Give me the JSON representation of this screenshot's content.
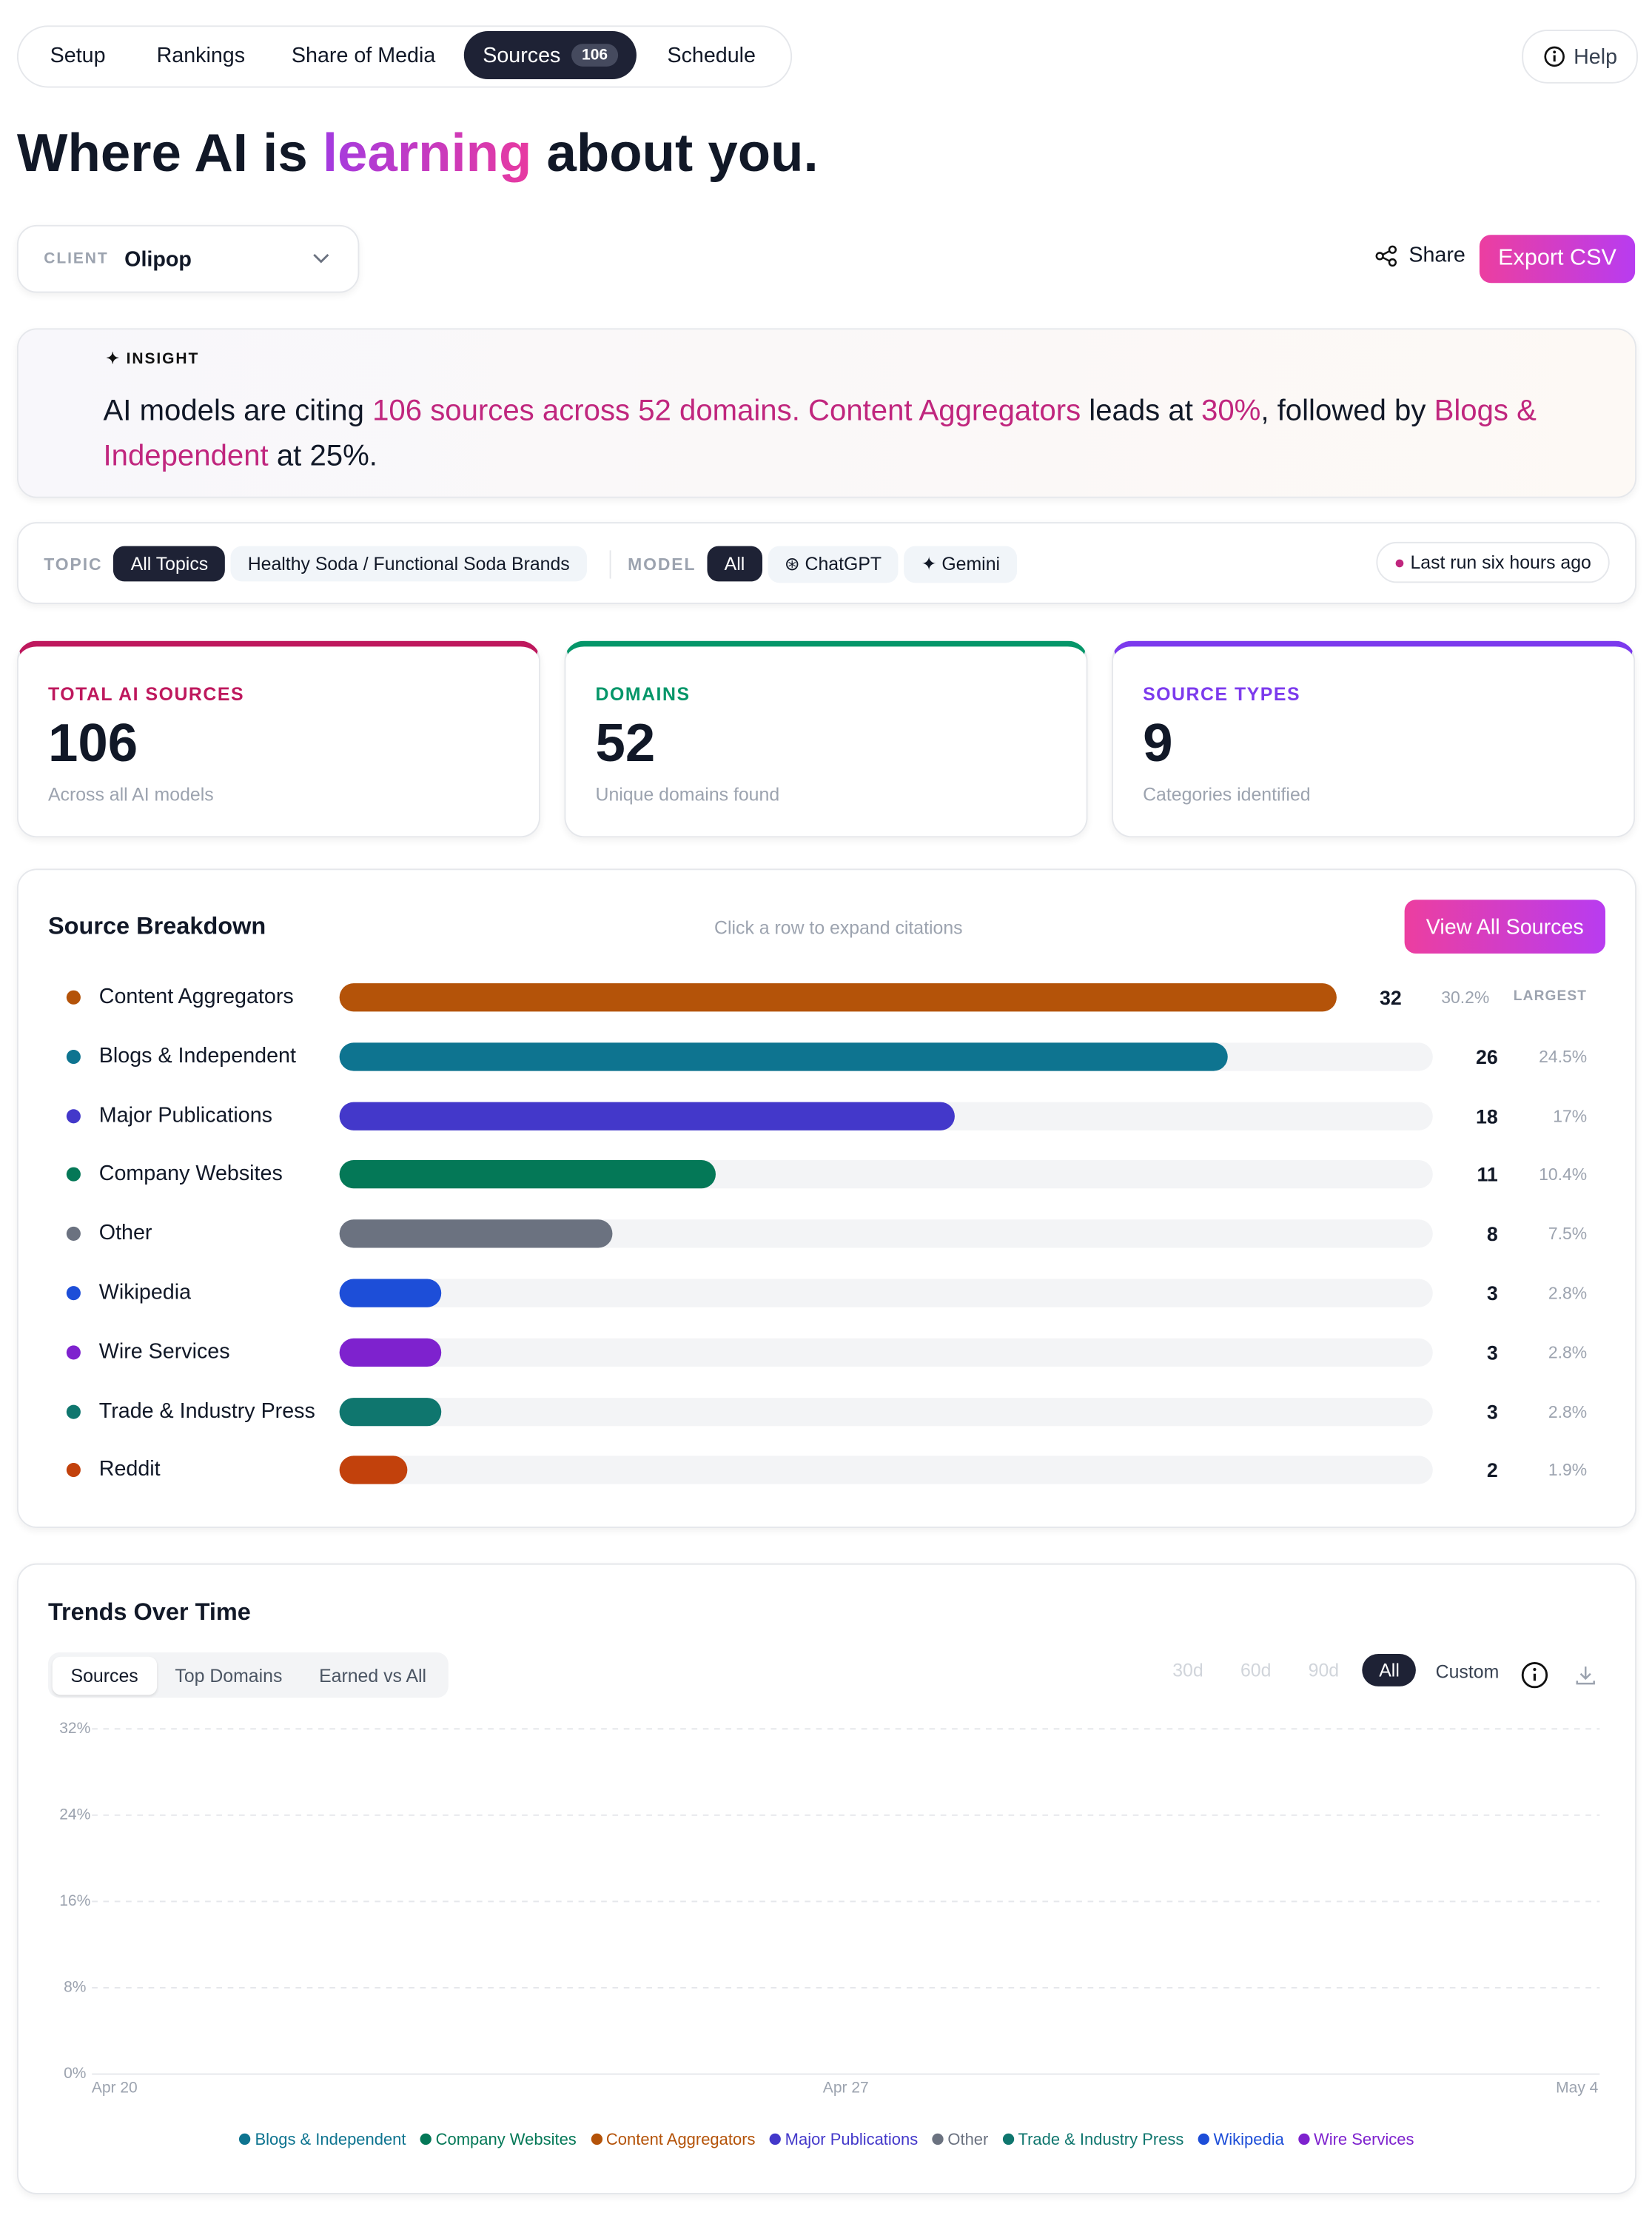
{
  "nav": {
    "tabs": [
      "Setup",
      "Rankings",
      "Share of Media",
      "Sources",
      "Schedule"
    ],
    "active": 3,
    "badge": "106",
    "help": "Help"
  },
  "headline": {
    "before": "Where AI is ",
    "accent": "learning",
    "after": " about you."
  },
  "client": {
    "label": "CLIENT",
    "value": "Olipop",
    "share": "Share",
    "export": "Export CSV"
  },
  "insight": {
    "label": "INSIGHT",
    "segments": [
      {
        "text": "AI models are citing ",
        "hl": false
      },
      {
        "text": "106 sources across 52 domains.",
        "hl": true
      },
      {
        "text": " ",
        "hl": false
      },
      {
        "text": "Content Aggregators",
        "hl": true
      },
      {
        "text": " leads at ",
        "hl": false
      },
      {
        "text": "30%",
        "hl": true
      },
      {
        "text": ", followed by ",
        "hl": false
      },
      {
        "text": "Blogs & Independent",
        "hl": true
      },
      {
        "text": " at 25%.",
        "hl": false
      }
    ]
  },
  "filters": {
    "topic_label": "TOPIC",
    "topics": [
      "All Topics",
      "Healthy Soda / Functional Soda Brands"
    ],
    "model_label": "MODEL",
    "models": [
      "All",
      "ChatGPT",
      "Gemini"
    ],
    "status": "Last run six hours ago"
  },
  "stats": [
    {
      "label": "TOTAL AI SOURCES",
      "value": "106",
      "note": "Across all AI models",
      "color": "#be185d"
    },
    {
      "label": "DOMAINS",
      "value": "52",
      "note": "Unique domains found",
      "color": "#059669"
    },
    {
      "label": "SOURCE TYPES",
      "value": "9",
      "note": "Categories identified",
      "color": "#7c3aed"
    }
  ],
  "breakdown": {
    "title": "Source Breakdown",
    "hint": "Click a row to expand citations",
    "button": "View All Sources",
    "largest": "LARGEST",
    "rows": [
      {
        "name": "Content Aggregators",
        "color": "#b45309",
        "count": 32,
        "pct": "30.2%"
      },
      {
        "name": "Blogs & Independent",
        "color": "#0e7490",
        "count": 26,
        "pct": "24.5%"
      },
      {
        "name": "Major Publications",
        "color": "#4338ca",
        "count": 18,
        "pct": "17%"
      },
      {
        "name": "Company Websites",
        "color": "#047857",
        "count": 11,
        "pct": "10.4%"
      },
      {
        "name": "Other",
        "color": "#6b7280",
        "count": 8,
        "pct": "7.5%"
      },
      {
        "name": "Wikipedia",
        "color": "#1d4ed8",
        "count": 3,
        "pct": "2.8%"
      },
      {
        "name": "Wire Services",
        "color": "#7e22ce",
        "count": 3,
        "pct": "2.8%"
      },
      {
        "name": "Trade & Industry Press",
        "color": "#0f766e",
        "count": 3,
        "pct": "2.8%"
      },
      {
        "name": "Reddit",
        "color": "#c2410c",
        "count": 2,
        "pct": "1.9%"
      }
    ]
  },
  "trends": {
    "title": "Trends Over Time",
    "tabs": [
      "Sources",
      "Top Domains",
      "Earned vs All"
    ],
    "ranges": [
      "30d",
      "60d",
      "90d",
      "All",
      "Custom"
    ],
    "chart_data": {
      "type": "line",
      "ylim": [
        0,
        32
      ],
      "yticks": [
        {
          "value": 0,
          "label": "0%"
        },
        {
          "value": 8,
          "label": "8%"
        },
        {
          "value": 16,
          "label": "16%"
        },
        {
          "value": 24,
          "label": "24%"
        },
        {
          "value": 32,
          "label": "32%"
        }
      ],
      "x": [
        "Apr 20",
        "Apr 27",
        "May 4"
      ],
      "series": [
        {
          "name": "Blogs & Independent",
          "color": "#0e7490"
        },
        {
          "name": "Company Websites",
          "color": "#047857"
        },
        {
          "name": "Content Aggregators",
          "color": "#b45309"
        },
        {
          "name": "Major Publications",
          "color": "#4338ca"
        },
        {
          "name": "Other",
          "color": "#6b7280"
        },
        {
          "name": "Trade & Industry Press",
          "color": "#0f766e"
        },
        {
          "name": "Wikipedia",
          "color": "#1d4ed8"
        },
        {
          "name": "Wire Services",
          "color": "#7e22ce"
        }
      ]
    }
  }
}
